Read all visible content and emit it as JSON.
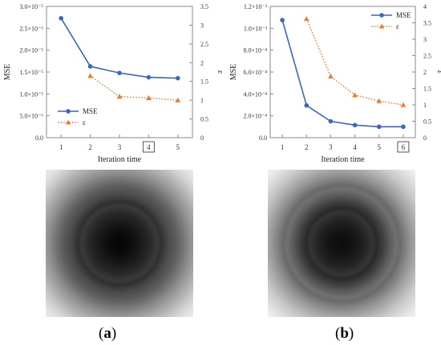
{
  "figure": {
    "panel_labels": [
      {
        "open": "(",
        "letter": "a",
        "close": ")"
      },
      {
        "open": "(",
        "letter": "b",
        "close": ")"
      }
    ]
  },
  "chart_data": [
    {
      "type": "line",
      "xlabel": "Iteration time",
      "ylabel_left": "MSE",
      "ylabel_right": "ε",
      "x_ticks": [
        "1",
        "2",
        "3",
        "4",
        "5"
      ],
      "boxed_x_tick": "4",
      "y_left_ticks": [
        "0.0",
        "5.0×10⁻⁶",
        "1.0×10⁻⁵",
        "1.5×10⁻⁵",
        "2.0×10⁻⁵",
        "2.5×10⁻⁵",
        "3.0×10⁻⁵"
      ],
      "y_right_ticks": [
        "0",
        "0.5",
        "1",
        "1.5",
        "2",
        "2.5",
        "3",
        "3.5"
      ],
      "xlim": [
        0.5,
        5.5
      ],
      "ylim_left": [
        0,
        3e-05
      ],
      "ylim_right": [
        0,
        3.5
      ],
      "legend_position": "bottom-left",
      "series": [
        {
          "name": "MSE",
          "axis": "left",
          "color": "#3a66c5",
          "style": "solid",
          "marker": "circle",
          "x": [
            1,
            2,
            3,
            4,
            5
          ],
          "values": [
            2.73e-05,
            1.63e-05,
            1.48e-05,
            1.38e-05,
            1.36e-05
          ]
        },
        {
          "name": "ε",
          "axis": "right",
          "color": "#ef7d31",
          "style": "dotted",
          "marker": "triangle",
          "x": [
            2,
            3,
            4,
            5
          ],
          "values": [
            1.65,
            1.1,
            1.06,
            1.0
          ]
        }
      ]
    },
    {
      "type": "line",
      "xlabel": "Iteration time",
      "ylabel_left": "MSE",
      "ylabel_right": "ε",
      "x_ticks": [
        "1",
        "2",
        "3",
        "4",
        "5",
        "6"
      ],
      "boxed_x_tick": "6",
      "y_left_ticks": [
        "0.0",
        "2.0×10⁻⁴",
        "4.0×10⁻⁴",
        "6.0×10⁻⁴",
        "8.0×10⁻⁴",
        "1.0×10⁻³",
        "1.2×10⁻³"
      ],
      "y_right_ticks": [
        "0",
        "0.5",
        "1",
        "1.5",
        "2",
        "2.5",
        "3",
        "3.5",
        "4"
      ],
      "xlim": [
        0.5,
        6.5
      ],
      "ylim_left": [
        0,
        0.0012
      ],
      "ylim_right": [
        0,
        4
      ],
      "legend_position": "top-right",
      "series": [
        {
          "name": "MSE",
          "axis": "left",
          "color": "#3a66c5",
          "style": "solid",
          "marker": "circle",
          "x": [
            1,
            2,
            3,
            4,
            5,
            6
          ],
          "values": [
            0.001075,
            0.000295,
            0.00015,
            0.000115,
            0.0001,
            0.0001
          ]
        },
        {
          "name": "ε",
          "axis": "right",
          "color": "#ef7d31",
          "style": "dotted",
          "marker": "triangle",
          "x": [
            2,
            3,
            4,
            5,
            6
          ],
          "values": [
            3.62,
            1.87,
            1.3,
            1.12,
            1.0
          ]
        }
      ]
    }
  ]
}
